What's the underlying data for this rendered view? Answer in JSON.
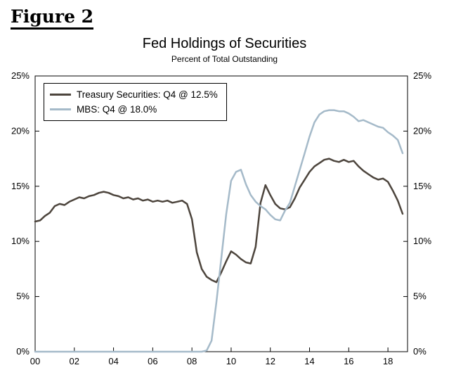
{
  "figure": {
    "label": "Figure 2"
  },
  "chart": {
    "title": "Fed Holdings of Securities",
    "subtitle": "Percent of Total Outstanding"
  },
  "legend": {
    "entries": [
      {
        "label": "Treasury Securities: Q4 @ 12.5%",
        "color": "#4d453d"
      },
      {
        "label": "MBS: Q4 @ 18.0%",
        "color": "#a5bac9"
      }
    ]
  },
  "chart_data": {
    "type": "line",
    "title": "Fed Holdings of Securities",
    "subtitle": "Percent of Total Outstanding",
    "xlabel": "",
    "ylabel": "Percent of Total Outstanding",
    "grid": false,
    "legend_position": "top-left",
    "x_start": 2000,
    "x_step": 0.25,
    "xlim": [
      2000,
      2019
    ],
    "ylim": [
      0,
      25
    ],
    "x_ticks": [
      2000,
      2002,
      2004,
      2006,
      2008,
      2010,
      2012,
      2014,
      2016,
      2018
    ],
    "x_tick_labels": [
      "00",
      "02",
      "04",
      "06",
      "08",
      "10",
      "12",
      "14",
      "16",
      "18"
    ],
    "y_ticks": [
      0,
      5,
      10,
      15,
      20,
      25
    ],
    "y_tick_labels": [
      "0%",
      "5%",
      "10%",
      "15%",
      "20%",
      "25%"
    ],
    "series": [
      {
        "name": "Treasury Securities",
        "color": "#4d453d",
        "final_label": "Q4 @ 12.5%",
        "values": [
          11.8,
          11.9,
          12.3,
          12.6,
          13.2,
          13.4,
          13.3,
          13.6,
          13.8,
          14.0,
          13.9,
          14.1,
          14.2,
          14.4,
          14.5,
          14.4,
          14.2,
          14.1,
          13.9,
          14.0,
          13.8,
          13.9,
          13.7,
          13.8,
          13.6,
          13.7,
          13.6,
          13.7,
          13.5,
          13.6,
          13.7,
          13.4,
          12.0,
          9.0,
          7.5,
          6.8,
          6.5,
          6.3,
          7.2,
          8.2,
          9.1,
          8.8,
          8.4,
          8.1,
          8.0,
          9.5,
          13.5,
          15.1,
          14.2,
          13.4,
          13.0,
          12.9,
          13.1,
          13.9,
          14.9,
          15.6,
          16.3,
          16.8,
          17.1,
          17.4,
          17.5,
          17.3,
          17.2,
          17.4,
          17.2,
          17.3,
          16.8,
          16.4,
          16.1,
          15.8,
          15.6,
          15.7,
          15.4,
          14.6,
          13.7,
          12.5
        ]
      },
      {
        "name": "MBS",
        "color": "#a5bac9",
        "final_label": "Q4 @ 18.0%",
        "values": [
          0,
          0,
          0,
          0,
          0,
          0,
          0,
          0,
          0,
          0,
          0,
          0,
          0,
          0,
          0,
          0,
          0,
          0,
          0,
          0,
          0,
          0,
          0,
          0,
          0,
          0,
          0,
          0,
          0,
          0,
          0,
          0,
          0,
          0,
          0,
          0.1,
          1.0,
          4.5,
          8.5,
          12.5,
          15.5,
          16.3,
          16.5,
          15.2,
          14.2,
          13.6,
          13.2,
          12.9,
          12.4,
          12.0,
          11.9,
          12.8,
          13.5,
          15.0,
          16.5,
          18.0,
          19.5,
          20.8,
          21.5,
          21.8,
          21.9,
          21.9,
          21.8,
          21.8,
          21.6,
          21.3,
          20.9,
          21.0,
          20.8,
          20.6,
          20.4,
          20.3,
          19.9,
          19.6,
          19.2,
          18.0
        ]
      }
    ]
  }
}
